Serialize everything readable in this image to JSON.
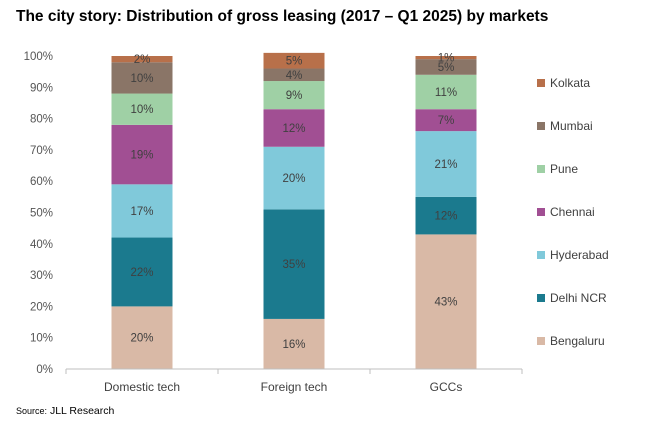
{
  "title": "The city story: Distribution of gross leasing (2017 – Q1 2025) by markets",
  "source": {
    "label": "Source:",
    "text": "JLL Research"
  },
  "chart_data": {
    "type": "bar",
    "stacked": true,
    "title": "The city story: Distribution of gross leasing (2017 – Q1 2025) by markets",
    "xlabel": "",
    "ylabel": "",
    "ylim": [
      0,
      100
    ],
    "yticks": [
      "0%",
      "10%",
      "20%",
      "30%",
      "40%",
      "50%",
      "60%",
      "70%",
      "80%",
      "90%",
      "100%"
    ],
    "categories": [
      "Domestic tech",
      "Foreign tech",
      "GCCs"
    ],
    "series": [
      {
        "name": "Bengaluru",
        "color": "#d9b9a6",
        "values": [
          20,
          16,
          43
        ],
        "labels": [
          "20%",
          "16%",
          "43%"
        ]
      },
      {
        "name": "Delhi NCR",
        "color": "#1b7a8e",
        "values": [
          22,
          35,
          12
        ],
        "labels": [
          "22%",
          "35%",
          "12%"
        ]
      },
      {
        "name": "Hyderabad",
        "color": "#80c9da",
        "values": [
          17,
          20,
          21
        ],
        "labels": [
          "17%",
          "20%",
          "21%"
        ]
      },
      {
        "name": "Chennai",
        "color": "#a14f93",
        "values": [
          19,
          12,
          7
        ],
        "labels": [
          "19%",
          "12%",
          "7%"
        ]
      },
      {
        "name": "Pune",
        "color": "#9fd0a5",
        "values": [
          10,
          9,
          11
        ],
        "labels": [
          "10%",
          "9%",
          "11%"
        ]
      },
      {
        "name": "Mumbai",
        "color": "#8a7567",
        "values": [
          10,
          4,
          5
        ],
        "labels": [
          "10%",
          "4%",
          "5%"
        ]
      },
      {
        "name": "Kolkata",
        "color": "#b8704a",
        "values": [
          2,
          5,
          1
        ],
        "labels": [
          "2%",
          "5%",
          "1%"
        ]
      }
    ],
    "legend_position": "right",
    "legend_order": [
      "Kolkata",
      "Mumbai",
      "Pune",
      "Chennai",
      "Hyderabad",
      "Delhi NCR",
      "Bengaluru"
    ]
  }
}
